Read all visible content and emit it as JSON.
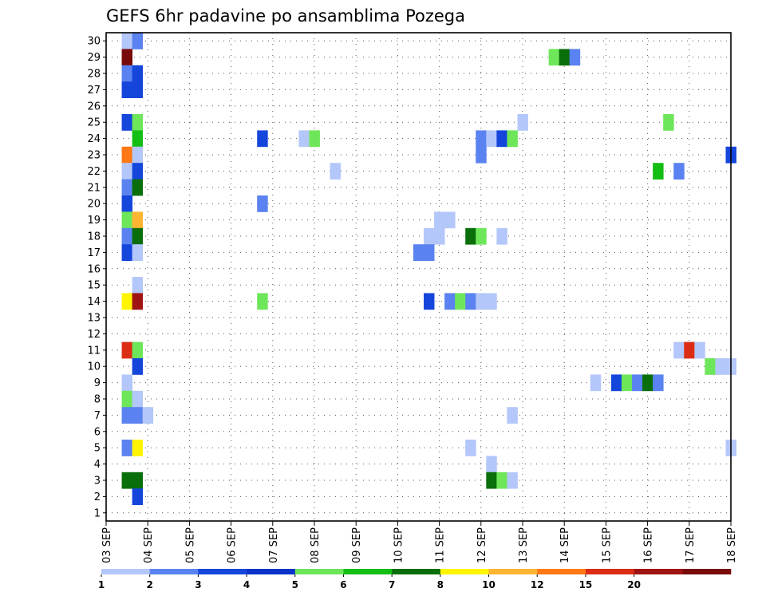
{
  "chart_data": {
    "type": "heatmap",
    "title": "GEFS 6hr padavine po ansamblima Pozega",
    "xlabel": "",
    "ylabel": "",
    "x_ticks": [
      "03 SEP",
      "04 SEP",
      "05 SEP",
      "06 SEP",
      "07 SEP",
      "08 SEP",
      "09 SEP",
      "10 SEP",
      "11 SEP",
      "12 SEP",
      "13 SEP",
      "14 SEP",
      "15 SEP",
      "16 SEP",
      "17 SEP",
      "18 SEP"
    ],
    "xlim": [
      0,
      15
    ],
    "y_ticks": [
      1,
      2,
      3,
      4,
      5,
      6,
      7,
      8,
      9,
      10,
      11,
      12,
      13,
      14,
      15,
      16,
      17,
      18,
      19,
      20,
      21,
      22,
      23,
      24,
      25,
      26,
      27,
      28,
      29,
      30
    ],
    "ylim": [
      0.5,
      30.5
    ],
    "grid": true,
    "time_step_days": 0.25,
    "colorbar": {
      "labels": [
        "1",
        "2",
        "3",
        "4",
        "5",
        "6",
        "7",
        "8",
        "10",
        "12",
        "15",
        "20"
      ],
      "colors": [
        "#b4c7fa",
        "#5a82f0",
        "#1446dc",
        "#0a32c8",
        "#6ee65a",
        "#14be14",
        "#0a6e0a",
        "#fff500",
        "#ffb432",
        "#ff7814",
        "#dc2d14",
        "#a01414",
        "#780a0a"
      ]
    },
    "cells": [
      {
        "t": 0.5,
        "m": 30,
        "c": 0
      },
      {
        "t": 0.75,
        "m": 30,
        "c": 1
      },
      {
        "t": 0.5,
        "m": 29,
        "c": 12
      },
      {
        "t": 10.75,
        "m": 29,
        "c": 4
      },
      {
        "t": 11.0,
        "m": 29,
        "c": 6
      },
      {
        "t": 11.25,
        "m": 29,
        "c": 1
      },
      {
        "t": 0.5,
        "m": 28,
        "c": 1
      },
      {
        "t": 0.75,
        "m": 28,
        "c": 2
      },
      {
        "t": 0.5,
        "m": 27,
        "c": 2
      },
      {
        "t": 0.75,
        "m": 27,
        "c": 2
      },
      {
        "t": 0.5,
        "m": 25,
        "c": 2
      },
      {
        "t": 0.75,
        "m": 25,
        "c": 4
      },
      {
        "t": 10.0,
        "m": 25,
        "c": 0
      },
      {
        "t": 13.5,
        "m": 25,
        "c": 4
      },
      {
        "t": 0.75,
        "m": 24,
        "c": 5
      },
      {
        "t": 3.75,
        "m": 24,
        "c": 2
      },
      {
        "t": 4.75,
        "m": 24,
        "c": 0
      },
      {
        "t": 5.0,
        "m": 24,
        "c": 4
      },
      {
        "t": 9.0,
        "m": 24,
        "c": 1
      },
      {
        "t": 9.25,
        "m": 24,
        "c": 0
      },
      {
        "t": 9.5,
        "m": 24,
        "c": 2
      },
      {
        "t": 9.75,
        "m": 24,
        "c": 4
      },
      {
        "t": 0.5,
        "m": 23,
        "c": 9
      },
      {
        "t": 0.75,
        "m": 23,
        "c": 0
      },
      {
        "t": 9.0,
        "m": 23,
        "c": 1
      },
      {
        "t": 15.0,
        "m": 23,
        "c": 2
      },
      {
        "t": 0.5,
        "m": 22,
        "c": 0
      },
      {
        "t": 0.75,
        "m": 22,
        "c": 2
      },
      {
        "t": 5.5,
        "m": 22,
        "c": 0
      },
      {
        "t": 13.25,
        "m": 22,
        "c": 5
      },
      {
        "t": 13.75,
        "m": 22,
        "c": 1
      },
      {
        "t": 0.5,
        "m": 21,
        "c": 1
      },
      {
        "t": 0.75,
        "m": 21,
        "c": 6
      },
      {
        "t": 0.5,
        "m": 20,
        "c": 2
      },
      {
        "t": 3.75,
        "m": 20,
        "c": 1
      },
      {
        "t": 0.5,
        "m": 19,
        "c": 4
      },
      {
        "t": 0.75,
        "m": 19,
        "c": 8
      },
      {
        "t": 8.0,
        "m": 19,
        "c": 0
      },
      {
        "t": 8.25,
        "m": 19,
        "c": 0
      },
      {
        "t": 0.5,
        "m": 18,
        "c": 1
      },
      {
        "t": 0.75,
        "m": 18,
        "c": 6
      },
      {
        "t": 7.75,
        "m": 18,
        "c": 0
      },
      {
        "t": 8.0,
        "m": 18,
        "c": 0
      },
      {
        "t": 8.75,
        "m": 18,
        "c": 6
      },
      {
        "t": 9.0,
        "m": 18,
        "c": 4
      },
      {
        "t": 9.5,
        "m": 18,
        "c": 0
      },
      {
        "t": 0.5,
        "m": 17,
        "c": 2
      },
      {
        "t": 0.75,
        "m": 17,
        "c": 0
      },
      {
        "t": 7.5,
        "m": 17,
        "c": 1
      },
      {
        "t": 7.75,
        "m": 17,
        "c": 1
      },
      {
        "t": 0.75,
        "m": 15,
        "c": 0
      },
      {
        "t": 0.5,
        "m": 14,
        "c": 7
      },
      {
        "t": 0.75,
        "m": 14,
        "c": 11
      },
      {
        "t": 3.75,
        "m": 14,
        "c": 4
      },
      {
        "t": 7.75,
        "m": 14,
        "c": 2
      },
      {
        "t": 8.25,
        "m": 14,
        "c": 1
      },
      {
        "t": 8.5,
        "m": 14,
        "c": 4
      },
      {
        "t": 8.75,
        "m": 14,
        "c": 1
      },
      {
        "t": 9.0,
        "m": 14,
        "c": 0
      },
      {
        "t": 9.25,
        "m": 14,
        "c": 0
      },
      {
        "t": 0.5,
        "m": 11,
        "c": 10
      },
      {
        "t": 0.75,
        "m": 11,
        "c": 4
      },
      {
        "t": 13.75,
        "m": 11,
        "c": 0
      },
      {
        "t": 14.0,
        "m": 11,
        "c": 10
      },
      {
        "t": 14.25,
        "m": 11,
        "c": 0
      },
      {
        "t": 0.75,
        "m": 10,
        "c": 2
      },
      {
        "t": 14.5,
        "m": 10,
        "c": 4
      },
      {
        "t": 14.75,
        "m": 10,
        "c": 0
      },
      {
        "t": 15.0,
        "m": 10,
        "c": 0
      },
      {
        "t": 0.5,
        "m": 9,
        "c": 0
      },
      {
        "t": 11.75,
        "m": 9,
        "c": 0
      },
      {
        "t": 12.25,
        "m": 9,
        "c": 2
      },
      {
        "t": 12.5,
        "m": 9,
        "c": 4
      },
      {
        "t": 12.75,
        "m": 9,
        "c": 1
      },
      {
        "t": 13.0,
        "m": 9,
        "c": 6
      },
      {
        "t": 13.25,
        "m": 9,
        "c": 1
      },
      {
        "t": 0.5,
        "m": 8,
        "c": 4
      },
      {
        "t": 0.75,
        "m": 8,
        "c": 0
      },
      {
        "t": 0.5,
        "m": 7,
        "c": 1
      },
      {
        "t": 0.75,
        "m": 7,
        "c": 1
      },
      {
        "t": 1.0,
        "m": 7,
        "c": 0
      },
      {
        "t": 9.75,
        "m": 7,
        "c": 0
      },
      {
        "t": 0.5,
        "m": 5,
        "c": 1
      },
      {
        "t": 0.75,
        "m": 5,
        "c": 7
      },
      {
        "t": 8.75,
        "m": 5,
        "c": 0
      },
      {
        "t": 15.0,
        "m": 5,
        "c": 0
      },
      {
        "t": 9.25,
        "m": 4,
        "c": 0
      },
      {
        "t": 0.5,
        "m": 3,
        "c": 6
      },
      {
        "t": 0.75,
        "m": 3,
        "c": 6
      },
      {
        "t": 9.25,
        "m": 3,
        "c": 6
      },
      {
        "t": 9.5,
        "m": 3,
        "c": 4
      },
      {
        "t": 9.75,
        "m": 3,
        "c": 0
      },
      {
        "t": 0.75,
        "m": 2,
        "c": 2
      }
    ]
  }
}
